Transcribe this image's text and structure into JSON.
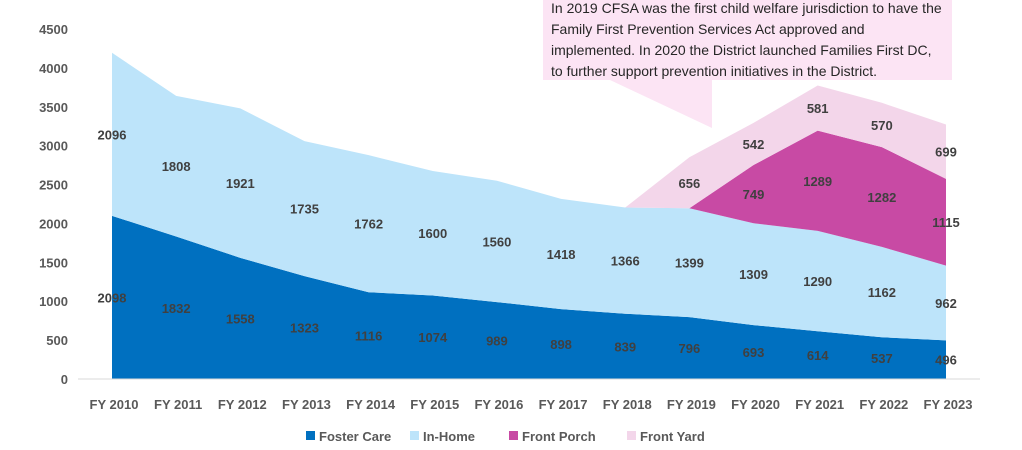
{
  "chart_data": {
    "type": "area",
    "stacked": true,
    "categories": [
      "FY 2010",
      "FY 2011",
      "FY 2012",
      "FY 2013",
      "FY 2014",
      "FY 2015",
      "FY 2016",
      "FY 2017",
      "FY 2018",
      "FY 2019",
      "FY 2020",
      "FY 2021",
      "FY 2022",
      "FY 2023"
    ],
    "series": [
      {
        "name": "Foster Care",
        "color": "#0070C0",
        "values": [
          2098,
          1832,
          1558,
          1323,
          1116,
          1074,
          989,
          898,
          839,
          796,
          693,
          614,
          537,
          496
        ]
      },
      {
        "name": "In-Home",
        "color": "#BDE4FA",
        "values": [
          2096,
          1808,
          1921,
          1735,
          1762,
          1600,
          1560,
          1418,
          1366,
          1399,
          1309,
          1290,
          1162,
          962
        ]
      },
      {
        "name": "Front Porch",
        "color": "#C84AA4",
        "values": [
          null,
          null,
          null,
          null,
          null,
          null,
          null,
          null,
          null,
          0,
          749,
          1289,
          1282,
          1115
        ]
      },
      {
        "name": "Front Yard",
        "color": "#F3D6EA",
        "values": [
          null,
          null,
          null,
          null,
          null,
          null,
          null,
          null,
          0,
          656,
          542,
          581,
          570,
          699
        ]
      }
    ],
    "yticks": [
      0,
      500,
      1000,
      1500,
      2000,
      2500,
      3000,
      3500,
      4000,
      4500
    ],
    "ylim": [
      0,
      4500
    ],
    "grid": false,
    "legend": "bottom",
    "annotation": "In 2019 CFSA was the first child welfare jurisdiction to have the Family First Prevention Services Act approved and implemented. In 2020 the District launched Families First DC, to further support prevention initiatives in the District.",
    "annotation_color": "#FCE4F4"
  }
}
